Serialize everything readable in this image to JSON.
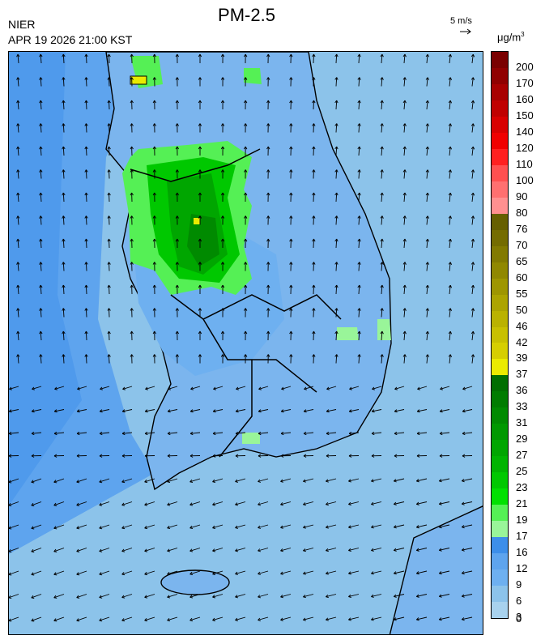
{
  "header": {
    "title": "PM-2.5",
    "agency": "NIER",
    "datetime": "APR 19 2026 21:00 KST",
    "wind_scale": "5 m/s",
    "unit": "μg/m",
    "unit_sup": "3"
  },
  "legend": {
    "labels": [
      "200",
      "170",
      "160",
      "150",
      "140",
      "120",
      "110",
      "100",
      "90",
      "80",
      "76",
      "70",
      "65",
      "60",
      "55",
      "50",
      "46",
      "42",
      "39",
      "37",
      "36",
      "33",
      "31",
      "29",
      "27",
      "25",
      "23",
      "21",
      "19",
      "17",
      "16",
      "12",
      "9",
      "6",
      "3",
      "0"
    ],
    "colors": [
      "#7a0000",
      "#900000",
      "#a80000",
      "#c00000",
      "#d80000",
      "#f00000",
      "#ff2020",
      "#ff5050",
      "#ff7070",
      "#ff9090",
      "#665f00",
      "#746c00",
      "#827a00",
      "#908800",
      "#9e9600",
      "#aca400",
      "#bab200",
      "#c8c000",
      "#d6ce00",
      "#eaea00",
      "#006e00",
      "#007c00",
      "#008a00",
      "#009800",
      "#00a600",
      "#00b400",
      "#00c800",
      "#00e000",
      "#55f055",
      "#99f599",
      "#3d8ee9",
      "#5ea4ee",
      "#6eb0f0",
      "#8cc3ea",
      "#a8d2ee"
    ]
  },
  "map": {
    "background_color": "#8cc3ea",
    "wind_field": "onshore north flow in the north, southwesterly-to-westward flow in the south"
  }
}
